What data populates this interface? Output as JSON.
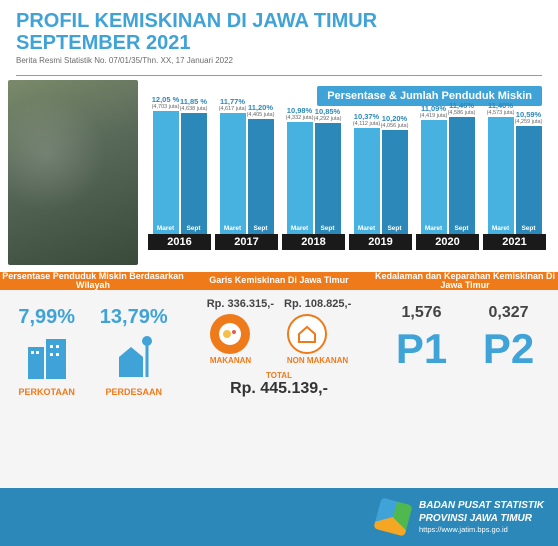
{
  "header": {
    "title_line1": "PROFIL KEMISKINAN DI JAWA TIMUR",
    "title_line2": "SEPTEMBER 2021",
    "subtitle": "Berita Resmi Statistik No. 07/01/35/Thn. XX, 17 Januari 2022"
  },
  "chart": {
    "title": "Persentase & Jumlah Penduduk Miskin",
    "type": "bar",
    "period_labels": [
      "Maret",
      "Sept"
    ],
    "bar_colors": {
      "maret": "#47b1e0",
      "sept": "#2c88b8"
    },
    "year_label_bg": "#1a1a1a",
    "max_pct": 12.5,
    "years": [
      {
        "year": "2016",
        "maret": {
          "pct": "12,05 %",
          "jml": "(4,703 juta)",
          "h": 12.05
        },
        "sept": {
          "pct": "11,85 %",
          "jml": "(4,638 juta)",
          "h": 11.85
        }
      },
      {
        "year": "2017",
        "maret": {
          "pct": "11,77%",
          "jml": "(4,617 juta)",
          "h": 11.77
        },
        "sept": {
          "pct": "11,20%",
          "jml": "(4,405 juta)",
          "h": 11.2
        }
      },
      {
        "year": "2018",
        "maret": {
          "pct": "10,98%",
          "jml": "(4,332 juta)",
          "h": 10.98
        },
        "sept": {
          "pct": "10,85%",
          "jml": "(4,292 juta)",
          "h": 10.85
        }
      },
      {
        "year": "2019",
        "maret": {
          "pct": "10,37%",
          "jml": "(4,112 juta)",
          "h": 10.37
        },
        "sept": {
          "pct": "10,20%",
          "jml": "(4,056 juta)",
          "h": 10.2
        }
      },
      {
        "year": "2020",
        "maret": {
          "pct": "11,09%",
          "jml": "(4,419 juta)",
          "h": 11.09
        },
        "sept": {
          "pct": "11,46%",
          "jml": "(4,586 juta)",
          "h": 11.46
        }
      },
      {
        "year": "2021",
        "maret": {
          "pct": "11,40%",
          "jml": "(4,573 juta)",
          "h": 11.4
        },
        "sept": {
          "pct": "10,59%",
          "jml": "(4,259 juta)",
          "h": 10.59
        }
      }
    ]
  },
  "sections": {
    "s1_title": "Persentase Penduduk Miskin Berdasarkan Wilayah",
    "s2_title": "Garis Kemiskinan Di Jawa Timur",
    "s3_title": "Kedalaman dan Keparahan Kemiskinan Di Jawa Timur"
  },
  "wilayah": {
    "perkotaan": {
      "pct": "7,99%",
      "label": "PERKOTAAN"
    },
    "perdesaan": {
      "pct": "13,79%",
      "label": "PERDESAAN"
    }
  },
  "garis": {
    "makanan_val": "Rp. 336.315,-",
    "non_makanan_val": "Rp. 108.825,-",
    "makanan_label": "MAKANAN",
    "non_makanan_label": "NON MAKANAN",
    "total_label": "TOTAL",
    "total_val": "Rp. 445.139,-",
    "icon_bg": "#ef7a1a"
  },
  "p1p2": {
    "p1_val": "1,576",
    "p1_label": "P1",
    "p2_val": "0,327",
    "p2_label": "P2"
  },
  "footer": {
    "line1": "BADAN PUSAT STATISTIK",
    "line2": "PROVINSI JAWA TIMUR",
    "line3": "https://www.jatim.bps.go.id"
  },
  "colors": {
    "primary": "#3fa3d8",
    "accent": "#ef7a1a",
    "dark_blue": "#2c88b8"
  }
}
